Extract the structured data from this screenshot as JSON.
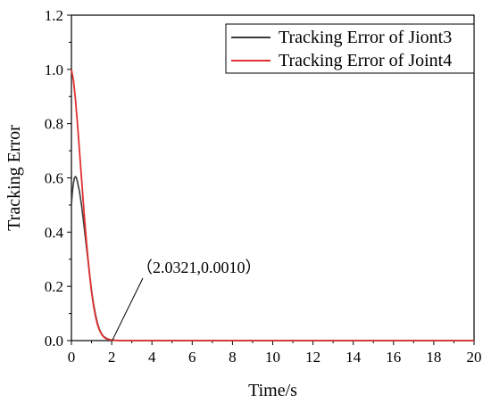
{
  "chart_data": {
    "type": "line",
    "title": "",
    "xlabel": "Time/s",
    "ylabel": "Tracking Error",
    "xlim": [
      0,
      20
    ],
    "ylim": [
      0,
      1.2
    ],
    "xticks": [
      0,
      2,
      4,
      6,
      8,
      10,
      12,
      14,
      16,
      18,
      20
    ],
    "yticks": [
      0.0,
      0.2,
      0.4,
      0.6,
      0.8,
      1.0,
      1.2
    ],
    "xtick_labels": [
      "0",
      "2",
      "4",
      "6",
      "8",
      "10",
      "12",
      "14",
      "16",
      "18",
      "20"
    ],
    "ytick_labels": [
      "0.0",
      "0.2",
      "0.4",
      "0.6",
      "0.8",
      "1.0",
      "1.2"
    ],
    "grid": false,
    "legend_position": "top-right",
    "series": [
      {
        "name": "Tracking Error of Jiont3",
        "color": "#3a3a3a",
        "x": [
          0,
          0.05,
          0.1,
          0.15,
          0.2,
          0.25,
          0.3,
          0.4,
          0.5,
          0.6,
          0.7,
          0.8,
          0.9,
          1.0,
          1.1,
          1.2,
          1.3,
          1.4,
          1.5,
          1.6,
          1.8,
          2.0,
          2.2,
          2.5,
          3.0,
          4.0,
          6.0,
          10.0,
          15.0,
          20.0
        ],
        "y": [
          0.5,
          0.55,
          0.58,
          0.6,
          0.605,
          0.6,
          0.585,
          0.55,
          0.5,
          0.44,
          0.375,
          0.31,
          0.245,
          0.185,
          0.135,
          0.095,
          0.063,
          0.04,
          0.025,
          0.015,
          0.006,
          0.002,
          0.001,
          0.0,
          0.0,
          0.0,
          0.0,
          0.0,
          0.0,
          0.0
        ]
      },
      {
        "name": "Tracking Error of Joint4",
        "color": "#e03030",
        "x": [
          0,
          0.1,
          0.2,
          0.3,
          0.4,
          0.5,
          0.6,
          0.7,
          0.8,
          0.9,
          1.0,
          1.1,
          1.2,
          1.3,
          1.4,
          1.5,
          1.6,
          1.7,
          1.8,
          2.0,
          2.2,
          2.5,
          3.0,
          4.0,
          6.0,
          10.0,
          15.0,
          20.0
        ],
        "y": [
          1.0,
          0.96,
          0.89,
          0.8,
          0.7,
          0.6,
          0.5,
          0.405,
          0.32,
          0.245,
          0.18,
          0.128,
          0.088,
          0.058,
          0.037,
          0.023,
          0.014,
          0.008,
          0.005,
          0.002,
          0.001,
          0.0,
          0.0,
          0.0,
          0.0,
          0.0,
          0.0,
          0.0
        ]
      }
    ],
    "annotations": [
      {
        "text": "（2.0321,0.0010）",
        "x": 2.0321,
        "y": 0.001
      }
    ]
  }
}
